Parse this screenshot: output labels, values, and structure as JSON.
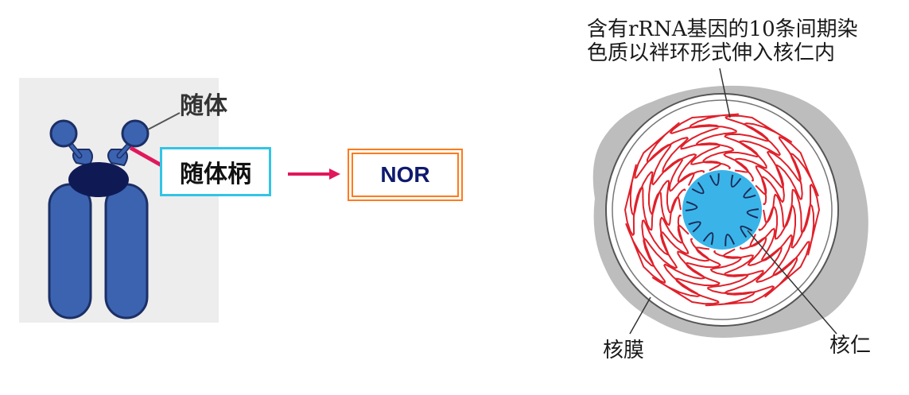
{
  "left": {
    "satellite_label": "随体",
    "stalk_label": "随体柄",
    "nor_label": "NOR",
    "colors": {
      "chromosome": "#3b63b0",
      "centromere": "#0f1a55",
      "stalk_line": "#e0185c",
      "stalk_box": "#33c4e6",
      "nor_box": "#ff7a1a",
      "arrow": "#e0185c"
    }
  },
  "right": {
    "caption_line1": "含有rRNA基因的10条间期染",
    "caption_line2": "色质以袢环形式伸入核仁内",
    "membrane_label": "核膜",
    "nucleolus_label": "核仁",
    "colors": {
      "cytoplasm": "#bdbdbd",
      "nucleolus": "#3ab4e8",
      "loops": "#e0202a"
    }
  }
}
